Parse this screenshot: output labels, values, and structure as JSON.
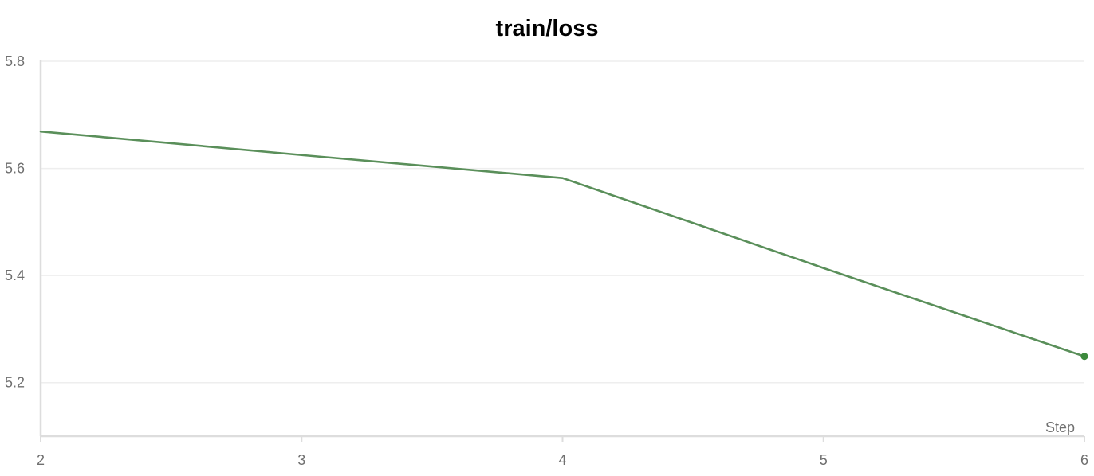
{
  "chart_data": {
    "type": "line",
    "title": "train/loss",
    "xlabel": "Step",
    "ylabel": "",
    "x": [
      2,
      3,
      4,
      5,
      6
    ],
    "series": [
      {
        "values": [
          5.669,
          5.625,
          5.582,
          5.414,
          5.249
        ],
        "color": "#5a8f5a",
        "end_marker": true
      }
    ],
    "xlim": [
      2,
      6
    ],
    "ylim": [
      5.1,
      5.8
    ],
    "x_ticks": [
      2,
      3,
      4,
      5,
      6
    ],
    "x_tick_labels": [
      "2",
      "3",
      "4",
      "5",
      "6"
    ],
    "y_ticks": [
      5.2,
      5.4,
      5.6,
      5.8
    ],
    "y_tick_labels": [
      "5.2",
      "5.4",
      "5.6",
      "5.8"
    ],
    "grid": true,
    "legend": "none"
  },
  "colors": {
    "line": "#5a8f5a",
    "marker": "#3d8a3d",
    "grid": "#eeeeee",
    "axis": "#dddddd",
    "tick_text": "#707070"
  }
}
